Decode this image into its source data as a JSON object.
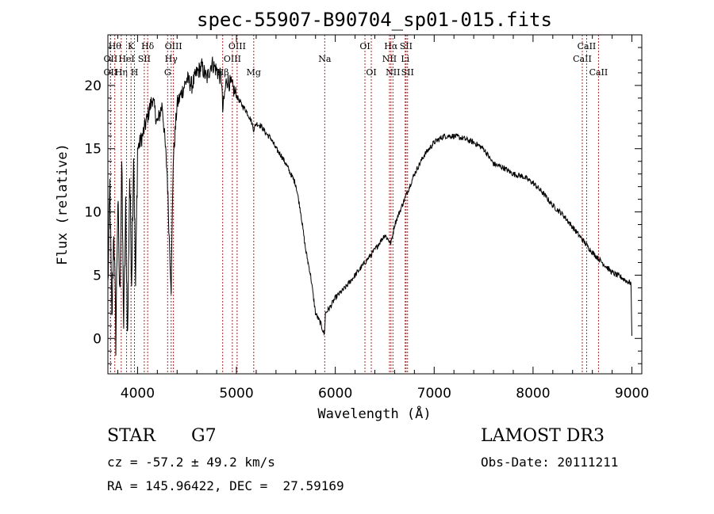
{
  "chart_data": {
    "type": "line",
    "title": "spec-55907-B90704_sp01-015.fits",
    "xlabel": "Wavelength (Å)",
    "ylabel": "Flux (relative)",
    "xlim": [
      3700,
      9100
    ],
    "ylim": [
      -2.8,
      24
    ],
    "xticks": [
      4000,
      5000,
      6000,
      7000,
      8000,
      9000
    ],
    "yticks": [
      0,
      5,
      10,
      15,
      20
    ],
    "grid": false,
    "series": [
      {
        "name": "flux",
        "x": [
          3700,
          3720,
          3740,
          3760,
          3780,
          3800,
          3820,
          3840,
          3860,
          3880,
          3900,
          3920,
          3940,
          3960,
          3980,
          4000,
          4050,
          4100,
          4150,
          4200,
          4250,
          4300,
          4320,
          4340,
          4360,
          4400,
          4450,
          4500,
          4550,
          4600,
          4650,
          4700,
          4750,
          4800,
          4850,
          4861,
          4900,
          4950,
          5000,
          5050,
          5100,
          5150,
          5175,
          5200,
          5250,
          5300,
          5350,
          5400,
          5450,
          5500,
          5550,
          5600,
          5650,
          5700,
          5750,
          5800,
          5850,
          5890,
          5900,
          5950,
          6000,
          6100,
          6200,
          6300,
          6400,
          6500,
          6563,
          6600,
          6700,
          6800,
          6900,
          7000,
          7100,
          7200,
          7300,
          7400,
          7500,
          7600,
          7700,
          7800,
          7900,
          8000,
          8100,
          8200,
          8300,
          8400,
          8500,
          8600,
          8700,
          8800,
          8900,
          8950,
          8990,
          9000
        ],
        "values": [
          4,
          12,
          1,
          9,
          0,
          11,
          3,
          14,
          1,
          10,
          0,
          13,
          5,
          15,
          4,
          15,
          16,
          17.5,
          19,
          17,
          18.5,
          13,
          8,
          4,
          14,
          18.5,
          19.5,
          20.5,
          20,
          21,
          21.5,
          20.5,
          21.8,
          21.2,
          20.5,
          18,
          20.5,
          20,
          19.2,
          18.5,
          18,
          17.2,
          16.5,
          17,
          16.8,
          16.2,
          15.8,
          15,
          14.5,
          13.8,
          13,
          12.2,
          10,
          7,
          5,
          2,
          1.2,
          0.3,
          2,
          2.5,
          3.2,
          4,
          5,
          6,
          7,
          8.2,
          7.5,
          9,
          11,
          13,
          14.5,
          15.5,
          16,
          16,
          15.8,
          15.5,
          15,
          13.8,
          13.5,
          13,
          12.8,
          12.3,
          11.5,
          10.5,
          9.8,
          8.8,
          7.8,
          6.8,
          6,
          5.2,
          4.8,
          4.5,
          4.4,
          0.2
        ]
      }
    ],
    "line_markers": [
      {
        "wavelength": 3727,
        "label": "OII",
        "row": 2
      },
      {
        "wavelength": 3727,
        "label": "OII",
        "row": 3
      },
      {
        "wavelength": 3770,
        "label": "Hθ",
        "row": 1
      },
      {
        "wavelength": 3835,
        "label": "Hη",
        "row": 3
      },
      {
        "wavelength": 3889,
        "label": "HeI",
        "row": 2
      },
      {
        "wavelength": 3934,
        "label": "K",
        "row": 1
      },
      {
        "wavelength": 3969,
        "label": "H",
        "row": 3
      },
      {
        "wavelength": 4068,
        "label": "SII",
        "row": 2
      },
      {
        "wavelength": 4102,
        "label": "Hδ",
        "row": 1
      },
      {
        "wavelength": 4304,
        "label": "G",
        "row": 3
      },
      {
        "wavelength": 4340,
        "label": "Hγ",
        "row": 2
      },
      {
        "wavelength": 4363,
        "label": "OIII",
        "row": 1
      },
      {
        "wavelength": 4861,
        "label": "Hβ",
        "row": 3
      },
      {
        "wavelength": 4959,
        "label": "OIII",
        "row": 2
      },
      {
        "wavelength": 5007,
        "label": "OIII",
        "row": 1
      },
      {
        "wavelength": 5175,
        "label": "Mg",
        "row": 3
      },
      {
        "wavelength": 5893,
        "label": "Na",
        "row": 2
      },
      {
        "wavelength": 6300,
        "label": "OI",
        "row": 1
      },
      {
        "wavelength": 6364,
        "label": "OI",
        "row": 3
      },
      {
        "wavelength": 6548,
        "label": "NII",
        "row": 2
      },
      {
        "wavelength": 6563,
        "label": "Hα",
        "row": 1
      },
      {
        "wavelength": 6583,
        "label": "NII",
        "row": 3
      },
      {
        "wavelength": 6707,
        "label": "Li",
        "row": 2
      },
      {
        "wavelength": 6716,
        "label": "SII",
        "row": 1
      },
      {
        "wavelength": 6731,
        "label": "SII",
        "row": 3
      },
      {
        "wavelength": 8498,
        "label": "CaII",
        "row": 2
      },
      {
        "wavelength": 8542,
        "label": "CaII",
        "row": 1
      },
      {
        "wavelength": 8662,
        "label": "CaII",
        "row": 3
      }
    ],
    "marker_color": "#b22222",
    "line_color": "#000000"
  },
  "info": {
    "class": "STAR",
    "subclass": "G7",
    "survey": "LAMOST DR3",
    "cz": "cz = -57.2 ± 49.2 km/s",
    "obs_date": "Obs-Date: 20111211",
    "coords": "RA = 145.96422, DEC =  27.59169"
  }
}
